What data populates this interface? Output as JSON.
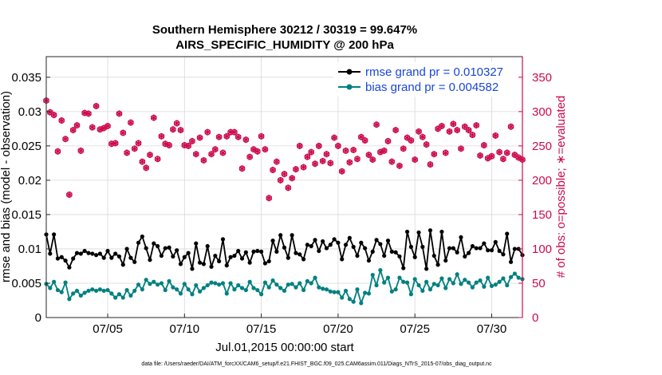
{
  "chart_data": {
    "type": "line",
    "title_line1": "Southern Hemisphere 30212 / 30319 = 99.647%",
    "title_line2": "AIRS_SPECIFIC_HUMIDITY @ 200 hPa",
    "xlabel": "Jul.01,2015 00:00:00 start",
    "ylabel": "rmse and bias (model - observation)",
    "ylabel_right": "# of obs: o=possible; ∗=evaluated",
    "footnote": "data file: /Users/raeder/DAI/ATM_forcXX/CAM6_setup/f.e21.FHIST_BGC.f09_025.CAM6assim.011/Diags_NTrS_2015-07/obs_diag_output.nc",
    "x_range": [
      1.0,
      32.0
    ],
    "ylim": [
      0,
      0.038
    ],
    "ylim_right": [
      0,
      380
    ],
    "x_ticks": [
      {
        "value": 5,
        "label": "07/05"
      },
      {
        "value": 10,
        "label": "07/10"
      },
      {
        "value": 15,
        "label": "07/15"
      },
      {
        "value": 20,
        "label": "07/20"
      },
      {
        "value": 25,
        "label": "07/25"
      },
      {
        "value": 30,
        "label": "07/30"
      }
    ],
    "y_ticks": [
      {
        "value": 0,
        "label": "0"
      },
      {
        "value": 0.005,
        "label": "0.005"
      },
      {
        "value": 0.01,
        "label": "0.01"
      },
      {
        "value": 0.015,
        "label": "0.015"
      },
      {
        "value": 0.02,
        "label": "0.02"
      },
      {
        "value": 0.025,
        "label": "0.025"
      },
      {
        "value": 0.03,
        "label": "0.03"
      },
      {
        "value": 0.035,
        "label": "0.035"
      }
    ],
    "y_ticks_right": [
      {
        "value": 0,
        "label": "0"
      },
      {
        "value": 50,
        "label": "50"
      },
      {
        "value": 100,
        "label": "100"
      },
      {
        "value": 150,
        "label": "150"
      },
      {
        "value": 200,
        "label": "200"
      },
      {
        "value": 250,
        "label": "250"
      },
      {
        "value": 300,
        "label": "300"
      },
      {
        "value": 350,
        "label": "350"
      }
    ],
    "x_start": 1.0,
    "x_step": 0.25,
    "series": [
      {
        "name": "rmse grand pr = 0.010327",
        "color": "#000000",
        "marker": "circle",
        "values": [
          0.0121,
          0.0093,
          0.0121,
          0.0086,
          0.0088,
          0.0083,
          0.0073,
          0.0086,
          0.0094,
          0.0093,
          0.0097,
          0.0094,
          0.0093,
          0.0091,
          0.0093,
          0.0087,
          0.0097,
          0.0087,
          0.0093,
          0.0089,
          0.0077,
          0.01,
          0.0087,
          0.0081,
          0.0109,
          0.0118,
          0.0101,
          0.0084,
          0.0108,
          0.0104,
          0.009,
          0.0101,
          0.0102,
          0.0089,
          0.0098,
          0.0078,
          0.0088,
          0.0094,
          0.0071,
          0.0108,
          0.008,
          0.0078,
          0.0104,
          0.0074,
          0.009,
          0.0082,
          0.0114,
          0.0076,
          0.0088,
          0.009,
          0.0097,
          0.0086,
          0.0095,
          0.008,
          0.0096,
          0.0097,
          0.0096,
          0.0079,
          0.0082,
          0.0112,
          0.0096,
          0.012,
          0.0102,
          0.0087,
          0.012,
          0.0094,
          0.0092,
          0.0085,
          0.0106,
          0.0104,
          0.0113,
          0.0097,
          0.0111,
          0.0101,
          0.0106,
          0.0114,
          0.0109,
          0.0085,
          0.0106,
          0.0116,
          0.0103,
          0.009,
          0.0109,
          0.0101,
          0.0083,
          0.0096,
          0.0113,
          0.0107,
          0.009,
          0.0112,
          0.0096,
          0.0095,
          0.0089,
          0.0072,
          0.0125,
          0.0103,
          0.0088,
          0.0124,
          0.0103,
          0.0071,
          0.0127,
          0.009,
          0.0077,
          0.0125,
          0.0083,
          0.0101,
          0.0101,
          0.0095,
          0.0117,
          0.0089,
          0.0094,
          0.0104,
          0.0101,
          0.0101,
          0.0108,
          0.0098,
          0.0098,
          0.011,
          0.0097,
          0.0092,
          0.0122,
          0.0081,
          0.01,
          0.01,
          0.0091,
          0.0105,
          0.0101,
          0.0121,
          0.0097,
          0.0115,
          0.0109,
          0.0102,
          0.0118,
          0.0081,
          0.0123,
          0.0097,
          0.0087,
          0.0118,
          0.0108,
          0.0102,
          0.0097,
          0.0093,
          0.0088,
          0.0096,
          0.0112,
          0.0108,
          0.0123,
          0.0102,
          0.0111,
          0.0129,
          0.0103,
          0.0105,
          0.0086,
          0.0122,
          0.01,
          0.0082,
          0.012,
          0.0105,
          0.0161,
          0.0117,
          0.0096,
          0.0141,
          0.0107,
          0.013,
          0.01,
          0.0108,
          0.0146,
          0.0128,
          0.0129
        ]
      },
      {
        "name": "bias grand pr = 0.004582",
        "color": "#008080",
        "marker": "circle",
        "values": [
          0.0049,
          0.0043,
          0.0052,
          0.004,
          0.0037,
          0.0051,
          0.0027,
          0.0035,
          0.0039,
          0.0032,
          0.0036,
          0.0039,
          0.0041,
          0.0039,
          0.0041,
          0.0039,
          0.004,
          0.0035,
          0.0029,
          0.0034,
          0.0029,
          0.004,
          0.0032,
          0.0039,
          0.0048,
          0.0041,
          0.0055,
          0.0049,
          0.0052,
          0.0048,
          0.005,
          0.004,
          0.0053,
          0.0044,
          0.0041,
          0.0035,
          0.0049,
          0.0041,
          0.0034,
          0.0047,
          0.0038,
          0.0043,
          0.0047,
          0.0051,
          0.005,
          0.0048,
          0.005,
          0.0035,
          0.005,
          0.0041,
          0.0047,
          0.0043,
          0.004,
          0.0052,
          0.0043,
          0.004,
          0.0034,
          0.0051,
          0.0044,
          0.0054,
          0.0048,
          0.0043,
          0.0039,
          0.0048,
          0.0049,
          0.0044,
          0.005,
          0.004,
          0.0053,
          0.005,
          0.0058,
          0.0044,
          0.0042,
          0.0041,
          0.0038,
          0.0037,
          0.0037,
          0.0029,
          0.0039,
          0.0027,
          0.0023,
          0.0041,
          0.0021,
          0.0036,
          0.0035,
          0.0062,
          0.0047,
          0.0069,
          0.0051,
          0.0058,
          0.0038,
          0.0041,
          0.0058,
          0.0052,
          0.0051,
          0.0034,
          0.0056,
          0.0047,
          0.0039,
          0.0052,
          0.0041,
          0.0049,
          0.0047,
          0.0057,
          0.0043,
          0.0056,
          0.005,
          0.0063,
          0.0049,
          0.0055,
          0.0051,
          0.0044,
          0.0051,
          0.0054,
          0.0045,
          0.0058,
          0.0046,
          0.0048,
          0.0052,
          0.0057,
          0.0047,
          0.0059,
          0.0064,
          0.0058,
          0.0056,
          0.0052,
          0.0069,
          0.0056,
          0.0047,
          0.0053,
          0.0044,
          0.0063,
          0.0042,
          0.005,
          0.006,
          0.0057,
          0.0047,
          0.0056,
          0.0052,
          0.0058,
          0.0055,
          0.0048,
          0.0053,
          0.0049,
          0.0047,
          0.0059,
          0.0065,
          0.0051,
          0.0046,
          0.0051,
          0.0061,
          0.0051,
          0.0048,
          0.0061,
          0.0067,
          0.0053,
          0.0059,
          0.008,
          0.0064,
          0.0057,
          0.0053,
          0.0054,
          0.0062,
          0.0064,
          0.0056,
          0.0057,
          0.0062,
          0.0054
        ]
      }
    ],
    "obs_possible": {
      "name": "# of obs possible",
      "color": "#cc0a4c",
      "marker": "o",
      "values": [
        316,
        299,
        295,
        242,
        287,
        260,
        179,
        273,
        280,
        243,
        298,
        297,
        277,
        308,
        274,
        276,
        279,
        253,
        254,
        297,
        269,
        240,
        284,
        246,
        254,
        227,
        218,
        237,
        291,
        231,
        264,
        253,
        251,
        274,
        283,
        273,
        251,
        250,
        257,
        238,
        262,
        229,
        270,
        238,
        245,
        263,
        240,
        264,
        270,
        270,
        263,
        217,
        259,
        234,
        245,
        242,
        264,
        245,
        174,
        215,
        227,
        200,
        209,
        189,
        203,
        216,
        250,
        219,
        234,
        241,
        224,
        250,
        228,
        238,
        225,
        262,
        250,
        213,
        243,
        226,
        244,
        231,
        263,
        258,
        237,
        230,
        281,
        241,
        243,
        257,
        227,
        273,
        221,
        246,
        262,
        258,
        230,
        271,
        263,
        252,
        223,
        238,
        275,
        279,
        240,
        271,
        282,
        273,
        246,
        278,
        273,
        266,
        280,
        236,
        251,
        232,
        235,
        265,
        241,
        231,
        240,
        278,
        237,
        233,
        230,
        272,
        272,
        262,
        245,
        208,
        251,
        263,
        271,
        283,
        243,
        225,
        242,
        276,
        231,
        225,
        235,
        261,
        247,
        225,
        234,
        253,
        238,
        263,
        226,
        236,
        227,
        239,
        262,
        191,
        275,
        265,
        233,
        238,
        242,
        221,
        225,
        270,
        233,
        284,
        237,
        223,
        230,
        245,
        266,
        235
      ]
    },
    "obs_evaluated": {
      "name": "# of obs evaluated",
      "color": "#cc0a4c",
      "marker": "*",
      "values": [
        316,
        299,
        295,
        242,
        287,
        260,
        179,
        273,
        280,
        243,
        298,
        297,
        277,
        308,
        274,
        276,
        279,
        253,
        254,
        297,
        269,
        240,
        284,
        246,
        254,
        227,
        218,
        237,
        291,
        231,
        264,
        253,
        251,
        274,
        283,
        273,
        251,
        250,
        257,
        238,
        262,
        229,
        270,
        238,
        245,
        263,
        240,
        264,
        270,
        270,
        263,
        217,
        259,
        234,
        245,
        242,
        264,
        245,
        174,
        215,
        227,
        200,
        209,
        189,
        203,
        216,
        250,
        219,
        234,
        241,
        224,
        250,
        228,
        238,
        225,
        262,
        250,
        213,
        243,
        226,
        244,
        231,
        263,
        258,
        237,
        230,
        281,
        241,
        243,
        257,
        227,
        273,
        221,
        246,
        262,
        258,
        230,
        271,
        263,
        252,
        223,
        238,
        275,
        279,
        240,
        271,
        282,
        273,
        246,
        278,
        273,
        266,
        280,
        236,
        251,
        232,
        235,
        265,
        241,
        231,
        240,
        278,
        237,
        233,
        230,
        272,
        272,
        262,
        245,
        208,
        251,
        263,
        271,
        283,
        243,
        225,
        242,
        276,
        231,
        225,
        235,
        261,
        247,
        225,
        234,
        253,
        238,
        263,
        226,
        236,
        227,
        239,
        262,
        191,
        275,
        265,
        233,
        238,
        242,
        221,
        225,
        270,
        233,
        284,
        237,
        223,
        230,
        245,
        266,
        235
      ]
    }
  }
}
